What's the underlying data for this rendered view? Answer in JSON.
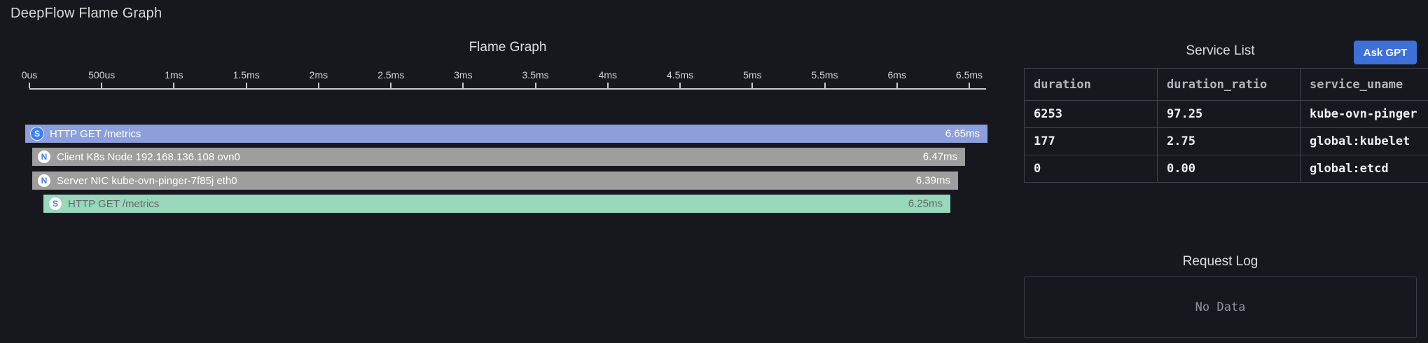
{
  "page_title": "DeepFlow Flame Graph",
  "flame_graph": {
    "title": "Flame Graph",
    "axis_ticks": [
      "0us",
      "500us",
      "1ms",
      "1.5ms",
      "2ms",
      "2.5ms",
      "3ms",
      "3.5ms",
      "4ms",
      "4.5ms",
      "5ms",
      "5.5ms",
      "6ms",
      "6.5ms"
    ],
    "bars": [
      {
        "icon": "S",
        "label": "HTTP GET /metrics",
        "duration": "6.65ms",
        "duration_ms": 6.65,
        "color": "#8c9fdc",
        "text_color": "#ffffff",
        "icon_bg": "#3f7ef4",
        "icon_fg": "#ffffff",
        "icon_ring": true
      },
      {
        "icon": "N",
        "label": "Client K8s Node 192.168.136.108 ovn0",
        "duration": "6.47ms",
        "duration_ms": 6.47,
        "color": "#9e9e9e",
        "text_color": "#ffffff",
        "icon_bg": "#ffffff",
        "icon_fg": "#3f7ef4",
        "icon_ring": false
      },
      {
        "icon": "N",
        "label": "Server NIC kube-ovn-pinger-7f85j eth0",
        "duration": "6.39ms",
        "duration_ms": 6.39,
        "color": "#9e9e9e",
        "text_color": "#ffffff",
        "icon_bg": "#ffffff",
        "icon_fg": "#3f7ef4",
        "icon_ring": false
      },
      {
        "icon": "S",
        "label": "HTTP GET /metrics",
        "duration": "6.25ms",
        "duration_ms": 6.25,
        "color": "#98d8bd",
        "text_color": "#63676e",
        "icon_bg": "#ffffff",
        "icon_fg": "#3f7ef4",
        "icon_ring": false
      }
    ]
  },
  "service_list": {
    "title": "Service List",
    "ask_gpt_label": "Ask GPT",
    "ask_gpt_color": "#3d71d9",
    "columns": [
      "duration",
      "duration_ratio",
      "service_uname"
    ],
    "rows": [
      [
        "6253",
        "97.25",
        "kube-ovn-pinger"
      ],
      [
        "177",
        "2.75",
        "global:kubelet"
      ],
      [
        "0",
        "0.00",
        "global:etcd"
      ]
    ]
  },
  "request_log": {
    "title": "Request Log",
    "empty_text": "No Data"
  }
}
